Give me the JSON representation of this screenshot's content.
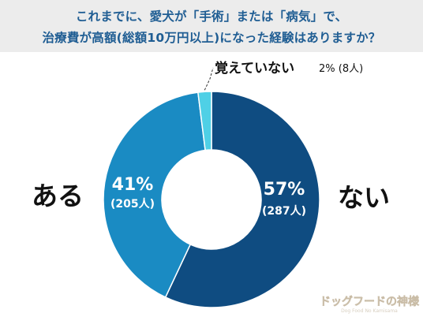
{
  "title": {
    "line1": "これまでに、愛犬が「手術」または「病気」で、",
    "line2": "治療費が高額(総額10万円以上)になった経験はありますか？"
  },
  "chart_data": {
    "type": "pie",
    "style": "donut",
    "slices": [
      {
        "label": "ない",
        "percent": 57,
        "count_label": "(287人)",
        "color": "#0f4c81"
      },
      {
        "label": "ある",
        "percent": 41,
        "count_label": "(205人)",
        "color": "#1a8bc3"
      },
      {
        "label": "覚えていない",
        "percent": 2,
        "count_label": "(8人)",
        "color": "#4fd0e6"
      }
    ]
  },
  "labels": {
    "nai": "ない",
    "aru": "ある",
    "oboete": "覚えていない",
    "oboete_value": "2% (8人)",
    "nai_pct": "57%",
    "nai_cnt": "(287人)",
    "aru_pct": "41%",
    "aru_cnt": "(205人)"
  },
  "watermark": {
    "text": "ドッグフードの神様",
    "subtext": "Dog Food No Kamisama"
  }
}
